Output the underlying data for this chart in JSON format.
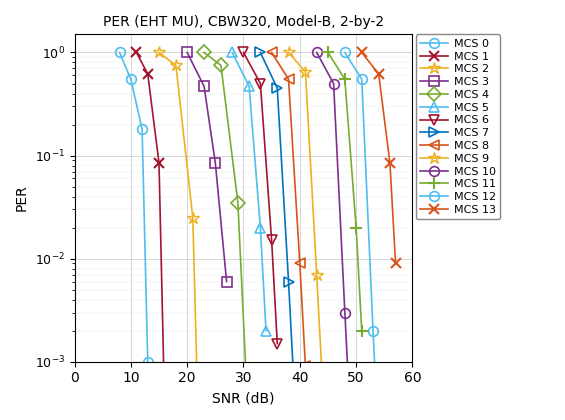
{
  "title": "PER (EHT MU), CBW320, Model-B, 2-by-2",
  "xlabel": "SNR (dB)",
  "ylabel": "PER",
  "xlim": [
    0,
    60
  ],
  "series": [
    {
      "label": "MCS 0",
      "color": "#4DBEEE",
      "marker": "o",
      "snr": [
        8,
        10,
        12,
        13
      ],
      "per": [
        1.0,
        0.55,
        0.18,
        0.001
      ]
    },
    {
      "label": "MCS 1",
      "color": "#A2142F",
      "marker": "x",
      "snr": [
        11,
        13,
        15,
        16
      ],
      "per": [
        1.0,
        0.62,
        0.085,
        0.00035
      ]
    },
    {
      "label": "MCS 2",
      "color": "#EDB120",
      "marker": "*",
      "snr": [
        15,
        18,
        21,
        22
      ],
      "per": [
        1.0,
        0.75,
        0.025,
        0.00022
      ]
    },
    {
      "label": "MCS 3",
      "color": "#7E2F8E",
      "marker": "s",
      "snr": [
        20,
        23,
        25,
        27
      ],
      "per": [
        1.0,
        0.47,
        0.085,
        0.006
      ]
    },
    {
      "label": "MCS 4",
      "color": "#77AC30",
      "marker": "D",
      "snr": [
        23,
        26,
        29,
        31
      ],
      "per": [
        1.0,
        0.75,
        0.035,
        0.00018
      ]
    },
    {
      "label": "MCS 5",
      "color": "#4DBEEE",
      "marker": "^",
      "snr": [
        28,
        31,
        33,
        34
      ],
      "per": [
        1.0,
        0.47,
        0.02,
        0.002
      ]
    },
    {
      "label": "MCS 6",
      "color": "#A2142F",
      "marker": "v",
      "snr": [
        30,
        33,
        35,
        36
      ],
      "per": [
        1.0,
        0.5,
        0.015,
        0.0015
      ]
    },
    {
      "label": "MCS 7",
      "color": "#0072BD",
      "marker": ">",
      "snr": [
        33,
        36,
        38,
        39
      ],
      "per": [
        1.0,
        0.45,
        0.006,
        0.00055
      ]
    },
    {
      "label": "MCS 8",
      "color": "#D95319",
      "marker": "<",
      "snr": [
        35,
        38,
        40,
        41
      ],
      "per": [
        1.0,
        0.55,
        0.009,
        0.0009
      ]
    },
    {
      "label": "MCS 9",
      "color": "#EDB120",
      "marker": "*",
      "snr": [
        38,
        41,
        43,
        44
      ],
      "per": [
        1.0,
        0.65,
        0.007,
        0.00065
      ]
    },
    {
      "label": "MCS 10",
      "color": "#7E2F8E",
      "marker": "o",
      "snr": [
        43,
        46,
        48,
        49
      ],
      "per": [
        1.0,
        0.5,
        0.003,
        0.00025
      ]
    },
    {
      "label": "MCS 11",
      "color": "#77AC30",
      "marker": "+",
      "snr": [
        45,
        48,
        50,
        51
      ],
      "per": [
        1.0,
        0.55,
        0.02,
        0.002
      ]
    },
    {
      "label": "MCS 12",
      "color": "#4DBEEE",
      "marker": "o",
      "snr": [
        48,
        51,
        53,
        54
      ],
      "per": [
        1.0,
        0.55,
        0.002,
        0.00015
      ]
    },
    {
      "label": "MCS 13",
      "color": "#D95319",
      "marker": "x",
      "snr": [
        51,
        54,
        56,
        57
      ],
      "per": [
        1.0,
        0.62,
        0.085,
        0.009
      ]
    }
  ]
}
